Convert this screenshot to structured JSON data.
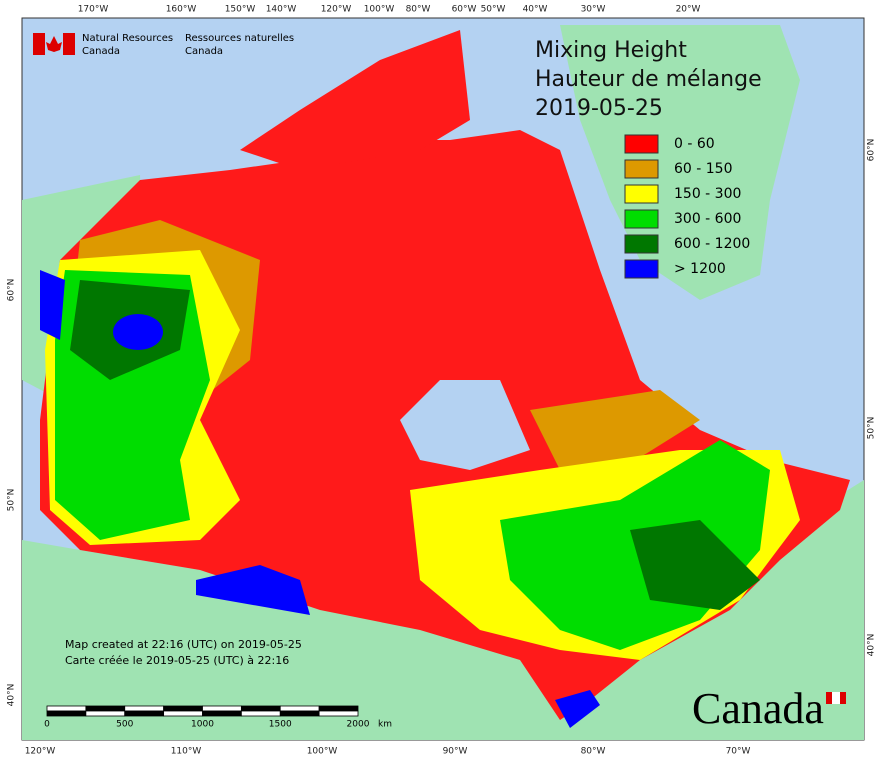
{
  "header": {
    "org_en": [
      "Natural Resources",
      "Canada"
    ],
    "org_fr": [
      "Ressources naturelles",
      "Canada"
    ]
  },
  "title": [
    "Mixing Height",
    "Hauteur de mélange",
    "2019-05-25"
  ],
  "legend": [
    {
      "label": "0 - 60",
      "color": "#ff0000"
    },
    {
      "label": "60 - 150",
      "color": "#dd9900"
    },
    {
      "label": "150 - 300",
      "color": "#ffff00"
    },
    {
      "label": "300 - 600",
      "color": "#00dd00"
    },
    {
      "label": "600 - 1200",
      "color": "#007700"
    },
    {
      "label": "> 1200",
      "color": "#0000ff"
    }
  ],
  "top_lon_labels": [
    "170°W",
    "160°W",
    "150°W",
    "140°W",
    "120°W",
    "100°W",
    "80°W",
    "60°W",
    "50°W",
    "40°W",
    "30°W",
    "20°W"
  ],
  "bottom_lon_labels": [
    "120°W",
    "110°W",
    "100°W",
    "90°W",
    "80°W",
    "70°W"
  ],
  "left_lat_labels": [
    "60°N",
    "50°N",
    "40°N"
  ],
  "right_lat_labels": [
    "60°N",
    "50°N",
    "40°N"
  ],
  "notes": [
    "Map created at 22:16 (UTC) on 2019-05-25",
    "Carte créée le 2019-05-25 (UTC) à 22:16"
  ],
  "scale": {
    "ticks": [
      0,
      500,
      1000,
      1500,
      2000
    ],
    "unit": "km"
  },
  "wordmark": "Canada"
}
